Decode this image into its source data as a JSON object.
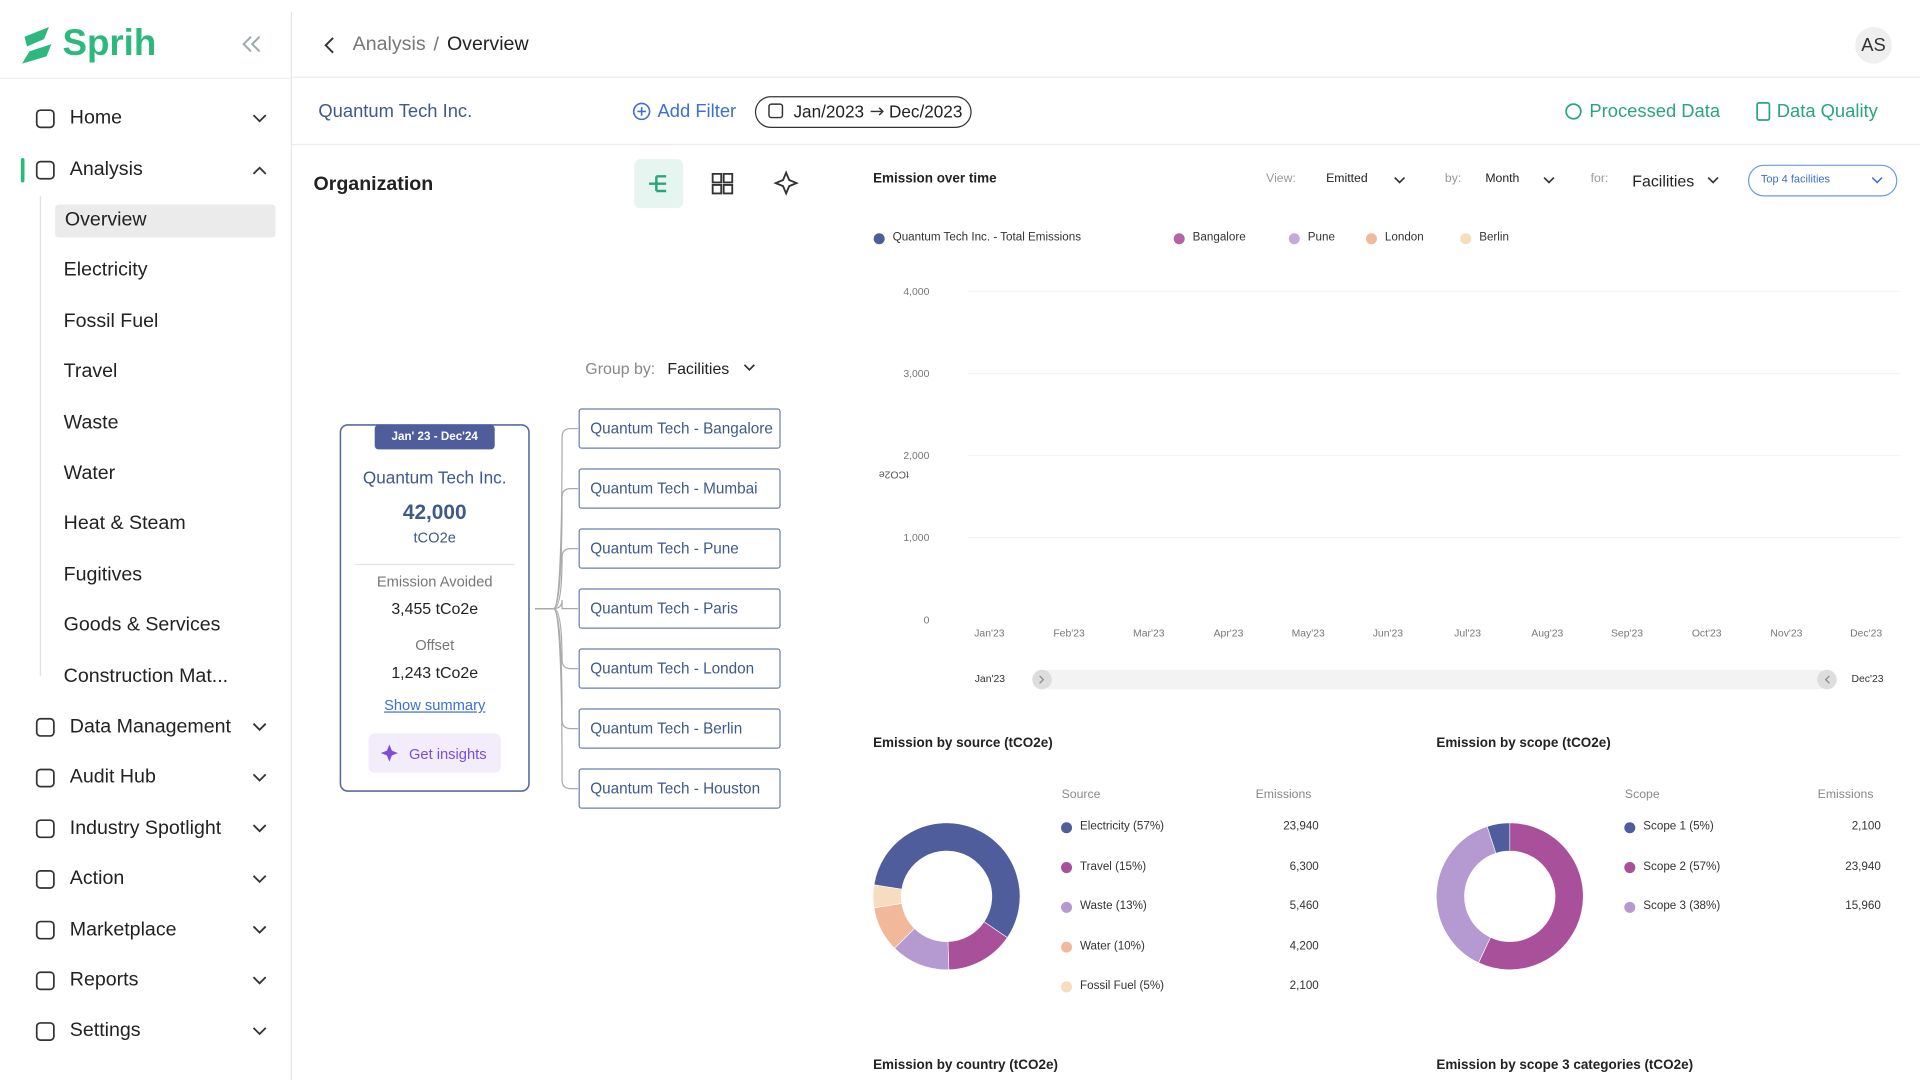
{
  "brand": "Sprih",
  "nav": {
    "top": [
      "Home",
      "Analysis"
    ],
    "analysis_children": [
      "Overview",
      "Electricity",
      "Fossil Fuel",
      "Travel",
      "Waste",
      "Water",
      "Heat & Steam",
      "Fugitives",
      "Goods & Services",
      "Construction Mat..."
    ],
    "bottom": [
      "Data Management",
      "Audit Hub",
      "Industry Spotlight",
      "Action",
      "Marketplace",
      "Reports",
      "Settings"
    ]
  },
  "breadcrumb": [
    "Analysis",
    "Overview"
  ],
  "avatar": "AS",
  "toolbar": {
    "company": "Quantum Tech Inc.",
    "add_filter": "Add Filter",
    "date_from": "Jan/2023",
    "date_to": "Dec/2023",
    "processed": "Processed Data",
    "quality": "Data Quality"
  },
  "organization": {
    "title": "Organization",
    "group_by_label": "Group by:",
    "group_by": "Facilities",
    "card": {
      "period": "Jan' 23 - Dec'24",
      "name": "Quantum Tech Inc.",
      "total": "42,000",
      "unit": "tCO2e",
      "avoided_label": "Emission Avoided",
      "avoided": "3,455 tCo2e",
      "offset_label": "Offset",
      "offset": "1,243 tCo2e",
      "summary": "Show summary",
      "insights": "Get insights"
    },
    "facilities": [
      "Quantum Tech - Bangalore",
      "Quantum Tech - Mumbai",
      "Quantum Tech - Pune",
      "Quantum Tech - Paris",
      "Quantum Tech - London",
      "Quantum Tech - Berlin",
      "Quantum Tech - Houston"
    ]
  },
  "chart_data": [
    {
      "type": "line",
      "title": "Emission over time",
      "controls": {
        "view_label": "View:",
        "view": "Emitted",
        "by_label": "by:",
        "by": "Month",
        "for_label": "for:",
        "for": "Facilities",
        "top": "Top 4 facilities"
      },
      "y_label": "tCO2e",
      "categories": [
        "Jan'23",
        "Feb'23",
        "Mar'23",
        "Apr'23",
        "May'23",
        "Jun'23",
        "Jul'23",
        "Aug'23",
        "Sep'23",
        "Oct'23",
        "Nov'23",
        "Dec'23"
      ],
      "series": [
        {
          "name": "Quantum Tech Inc. - Total Emissions",
          "color": "#4f5d9c"
        },
        {
          "name": "Bangalore",
          "color": "#b463a8"
        },
        {
          "name": "Pune",
          "color": "#c3aadb"
        },
        {
          "name": "London",
          "color": "#f2b89a"
        },
        {
          "name": "Berlin",
          "color": "#f8dcc0"
        }
      ],
      "ylim": [
        0,
        4000
      ],
      "yticks": [
        0,
        {
          "value": 1000,
          "label": "1,000"
        },
        {
          "value": 2000,
          "label": "2,000"
        },
        {
          "value": 3000,
          "label": "3,000"
        },
        {
          "value": 4000,
          "label": "4,000"
        }
      ],
      "grid": true,
      "range_start": "Jan'23",
      "range_end": "Dec'23"
    },
    {
      "type": "pie",
      "title": "Emission by source (tCO2e)",
      "headers": [
        "Source",
        "Emissions"
      ],
      "categories": [
        "Electricity (57%)",
        "Travel (15%)",
        "Waste (13%)",
        "Water (10%)",
        "Fossil Fuel (5%)"
      ],
      "values": [
        57,
        15,
        13,
        10,
        5
      ],
      "emissions": [
        "23,940",
        "6,300",
        "5,460",
        "4,200",
        "2,100"
      ],
      "colors": [
        "#4f5d9c",
        "#a8509a",
        "#b49ad0",
        "#f2b89a",
        "#f8dcc0"
      ]
    },
    {
      "type": "pie",
      "title": "Emission by scope (tCO2e)",
      "headers": [
        "Scope",
        "Emissions"
      ],
      "categories": [
        "Scope 1 (5%)",
        "Scope 2 (57%)",
        "Scope 3 (38%)"
      ],
      "values": [
        5,
        57,
        38
      ],
      "emissions": [
        "2,100",
        "23,940",
        "15,960"
      ],
      "colors": [
        "#4f5d9c",
        "#a8509a",
        "#b49ad0"
      ]
    }
  ],
  "more_sections": [
    "Emission by country (tCO2e)",
    "Emission by scope 3 categories (tCO2e)"
  ]
}
